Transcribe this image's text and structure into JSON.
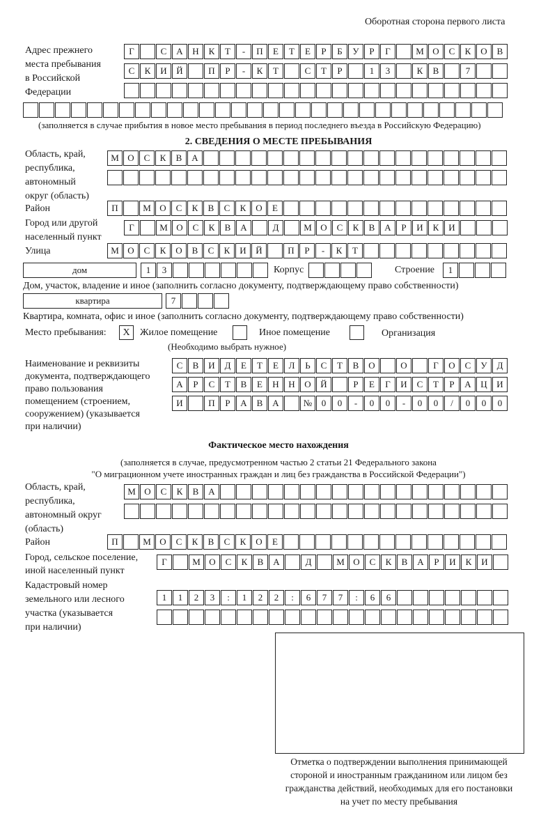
{
  "page_header": "Оборотная сторона первого листа",
  "previous_address": {
    "label": [
      "Адрес прежнего",
      "места пребывания",
      "в Российской",
      "Федерации"
    ],
    "rows": [
      "Г САНКТ-ПЕТЕРБУРГ МОСКОВ",
      "СКИЙ ПР-КТ СТР 13 КВ 7",
      "",
      ""
    ],
    "note": "(заполняется в случае прибытия в новое место пребывания в период последнего въезда в Российскую Федерацию)"
  },
  "section2": {
    "title": "2. СВЕДЕНИЯ О МЕСТЕ ПРЕБЫВАНИЯ",
    "region_label": [
      "Область, край,",
      "республика,",
      "автономный",
      "округ (область)"
    ],
    "region_rows": [
      "МОСКВА",
      ""
    ],
    "district_label": "Район",
    "district": "П МОСКВСКОЕ",
    "city_label": [
      "Город или другой",
      "населенный пункт"
    ],
    "city": "Г МОСКВА Д МОСКВАРИКИ",
    "street_label": "Улица",
    "street": "МОСКОВСКИЙ ПР-КТ",
    "house_type": "дом",
    "house_number": "13",
    "korpus_label": "Корпус",
    "korpus": "",
    "building_label": "Строение",
    "building": "1",
    "house_note": "Дом, участок, владение и иное (заполнить согласно документу, подтверждающему право собственности)",
    "apartment_type": "квартира",
    "apartment_number": "7",
    "apartment_note": "Квартира, комната, офис и иное (заполнить согласно документу, подтверждающему право собственности)",
    "stay_place_label": "Место пребывания:",
    "stay_options": [
      {
        "label": "Жилое помещение",
        "mark": "X"
      },
      {
        "label": "Иное помещение",
        "mark": ""
      },
      {
        "label": "Организация",
        "mark": ""
      }
    ],
    "stay_hint": "(Необходимо выбрать нужное)",
    "document_label": [
      "Наименование и реквизиты",
      "документа, подтверждающего",
      "право пользования",
      "помещением (строением,",
      "сооружением) (указывается",
      "при наличии)"
    ],
    "document_rows": [
      "СВИДЕТЕЛЬСТВО О ГОСУД",
      "АРСТВЕННОЙ РЕГИСТРАЦИ",
      "И ПРАВА №00-00-00/000"
    ]
  },
  "actual_location": {
    "title": "Фактическое место нахождения",
    "note": [
      "(заполняется в случае, предусмотренном частью 2 статьи 21 Федерального закона",
      "\"О миграционном учете иностранных граждан и лиц без гражданства в Российской Федерации\")"
    ],
    "region_label": [
      "Область, край,",
      "республика,",
      "автономный округ",
      "(область)"
    ],
    "region_rows": [
      "МОСКВА",
      ""
    ],
    "district_label": "Район",
    "district": "П МОСКВСКОЕ",
    "city_label": [
      "Город, сельское поселение,",
      "иной населенный пункт"
    ],
    "city": "Г МОСКВА Д МОСКВАРИКИ",
    "cadastral_label": [
      "Кадастровый номер",
      "земельного или лесного",
      "участка (указывается",
      "при наличии)"
    ],
    "cadastral_rows": [
      "1123:122:677:66",
      ""
    ]
  },
  "confirmation": {
    "caption": [
      "Отметка о подтверждении выполнения принимающей",
      "стороной и иностранным гражданином или лицом без",
      "гражданства действий, необходимых для его постановки",
      "на учет по месту пребывания"
    ]
  }
}
